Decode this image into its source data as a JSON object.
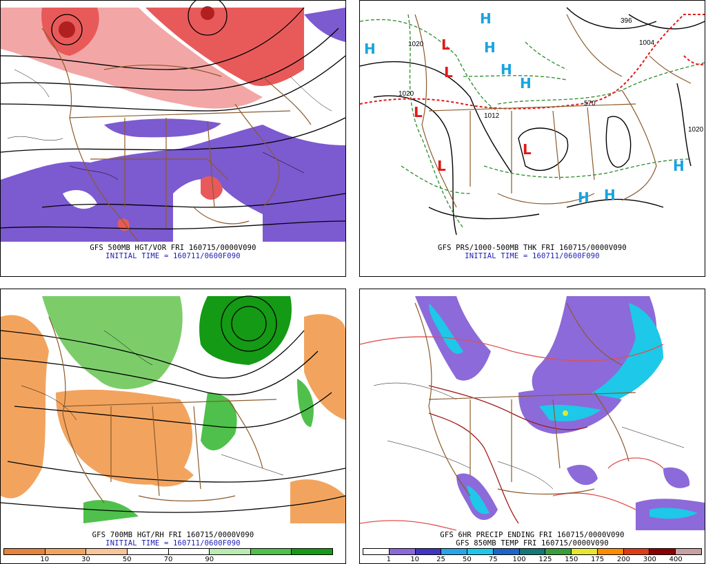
{
  "panels": {
    "vor": {
      "caption1": "GFS 500MB HGT/VOR FRI 160715/0000V090",
      "caption2": "INITIAL TIME = 160711/0600F090"
    },
    "prs": {
      "caption1": "GFS PRS/1000-500MB THK FRI 160715/0000V090",
      "caption2": "INITIAL TIME = 160711/0600F090",
      "highs": [
        "H",
        "H",
        "H",
        "H",
        "H",
        "H",
        "H",
        "H"
      ],
      "lows": [
        "L",
        "L",
        "L",
        "L",
        "L"
      ]
    },
    "rh": {
      "caption1": "GFS 700MB HGT/RH FRI 160715/0000V090",
      "caption2": "INITIAL TIME = 160711/0600F090",
      "colorbar": {
        "labels": [
          "10",
          "30",
          "50",
          "70",
          "90"
        ],
        "colors": [
          "#e3833d",
          "#f2a45f",
          "#f8c69a",
          "#ffffff",
          "#ffffff",
          "#b8ecb0",
          "#4fc04b",
          "#149a14"
        ]
      }
    },
    "precip": {
      "caption1": "GFS 6HR PRECIP ENDING FRI 160715/0000V090",
      "caption2": "GFS 850MB TEMP FRI 160715/0000V090",
      "colorbar": {
        "labels": [
          "1",
          "10",
          "25",
          "50",
          "75",
          "100",
          "125",
          "150",
          "175",
          "200",
          "300",
          "400"
        ],
        "colors": [
          "#ffffff",
          "#8c6ad9",
          "#3f34c4",
          "#2aa4e8",
          "#1ec8e8",
          "#1e64c8",
          "#147878",
          "#3a9e3a",
          "#e6e632",
          "#ff8c00",
          "#e03c14",
          "#8b0000",
          "#c8a0a0"
        ]
      }
    }
  },
  "colors": {
    "map_lines": "#8b5a2b",
    "contour": "#000000",
    "vort_pos": "#e85a5a",
    "vort_neg": "#7c5ad0",
    "dry": "#f2a45f",
    "moist": "#3aa83a",
    "high": "#19a3e0",
    "low": "#e11919",
    "thickness_540": "#2a8a2a",
    "thickness_570": "#e01818"
  }
}
